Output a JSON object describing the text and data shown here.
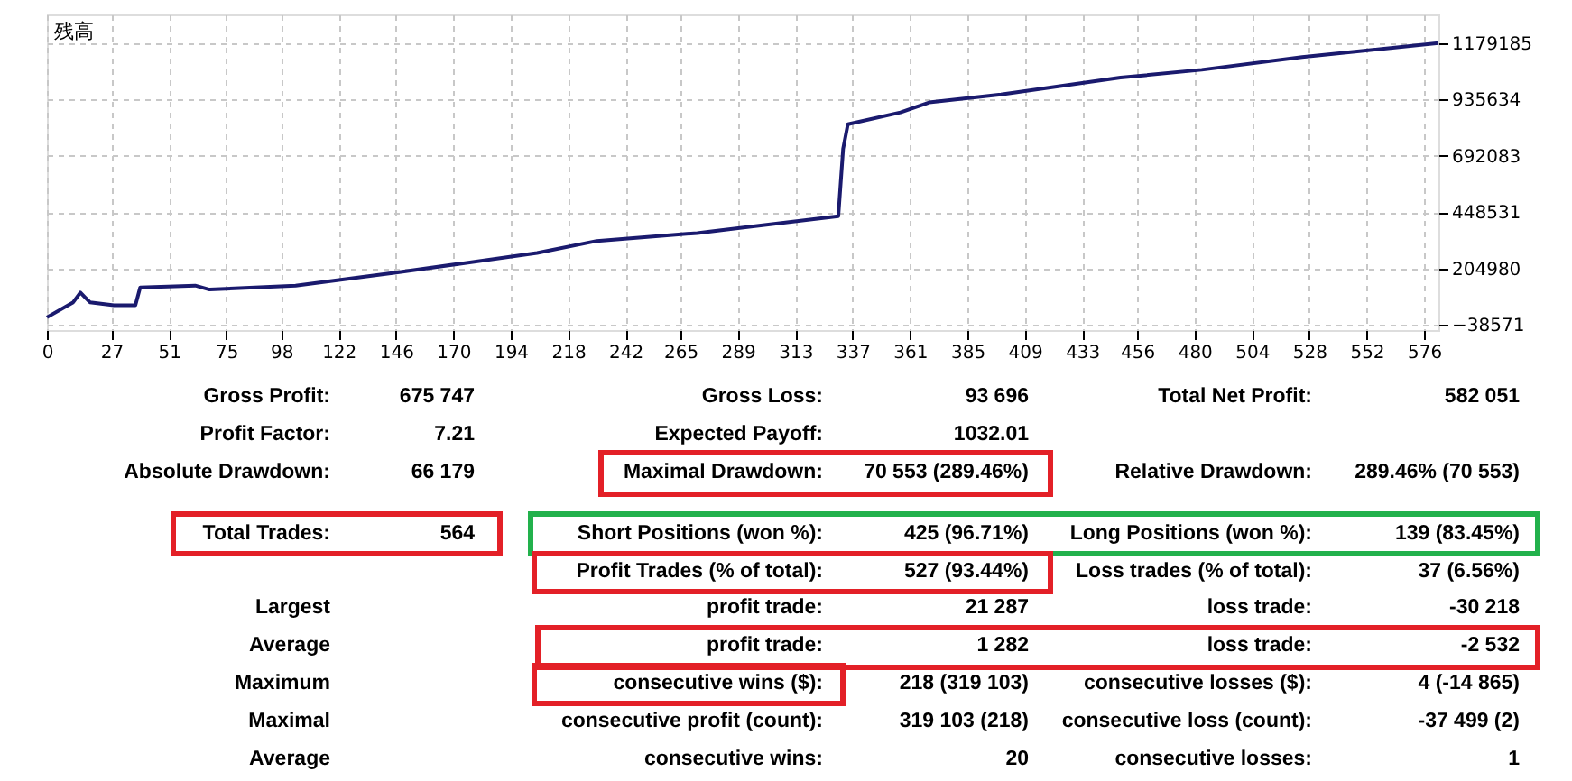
{
  "chart_data": [
    {
      "type": "line",
      "title": "残高",
      "x": [
        0,
        11,
        14,
        16,
        18,
        28,
        37,
        39,
        62,
        68,
        104,
        146,
        205,
        230,
        272,
        331,
        333,
        335,
        357,
        369,
        399,
        449,
        483,
        525,
        582
      ],
      "series": [
        {
          "color": "#1a1a6e",
          "values": [
            -5000,
            60000,
            102000,
            81000,
            60000,
            47000,
            47000,
            124000,
            132000,
            115000,
            132000,
            188000,
            273000,
            325000,
            359000,
            432000,
            722000,
            829000,
            880000,
            923000,
            957000,
            1030000,
            1064000,
            1119000,
            1179000
          ]
        }
      ],
      "xlim": [
        0,
        582
      ],
      "ylim": [
        -60000,
        1303000
      ],
      "xticks": [
        0,
        27,
        51,
        75,
        98,
        122,
        146,
        170,
        194,
        218,
        242,
        265,
        289,
        313,
        337,
        361,
        385,
        409,
        433,
        456,
        480,
        504,
        528,
        552,
        576
      ],
      "yticks": [
        -38571,
        204980,
        448531,
        692083,
        935634,
        1179185
      ],
      "grid": true,
      "marker": "none",
      "line_style": "solid"
    },
    {
      "type": "other",
      "annotations": [
        "Gross Profit:",
        "675 747",
        "Gross Loss:",
        "93 696",
        "Total Net Profit:",
        "582 051",
        "Profit Factor:",
        "7.21",
        "Expected Payoff:",
        "1032.01",
        "Absolute Drawdown:",
        "66 179",
        "Maximal Drawdown:",
        "70 553 (289.46%)",
        "Relative Drawdown:",
        "289.46% (70 553)",
        "Total Trades:",
        "564",
        "Short Positions (won %):",
        "425 (96.71%)",
        "Long Positions (won %):",
        "139 (83.45%)",
        "Profit Trades (% of total):",
        "527 (93.44%)",
        "Loss trades (% of total):",
        "37 (6.56%)",
        "Largest",
        "profit trade:",
        "21 287",
        "loss trade:",
        "-30 218",
        "Average",
        "profit trade:",
        "1 282",
        "loss trade:",
        "-2 532",
        "Maximum",
        "consecutive wins ($):",
        "218 (319 103)",
        "consecutive losses ($):",
        "4 (-14 865)",
        "Maximal",
        "consecutive profit (count):",
        "319 103 (218)",
        "consecutive loss (count):",
        "-37 499 (2)",
        "Average",
        "consecutive wins:",
        "20",
        "consecutive losses:",
        "1"
      ]
    }
  ]
}
